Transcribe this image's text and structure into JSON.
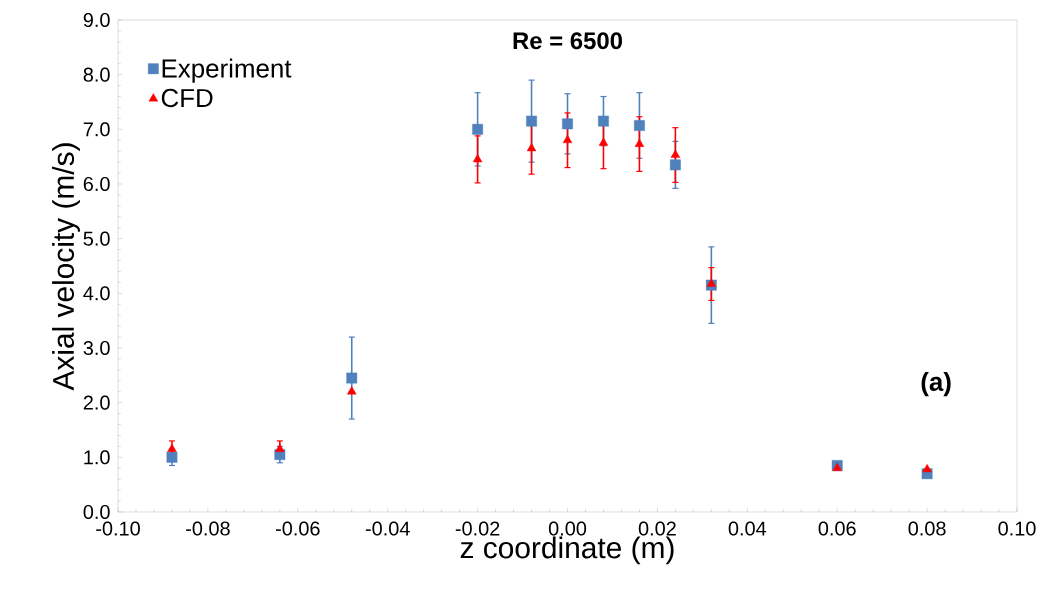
{
  "chart_data": {
    "type": "scatter",
    "title": "**Re = 6500**",
    "xlabel": "z coordinate (m)",
    "ylabel": "Axial velocity (m/s)",
    "annotations": [
      "**(a)**"
    ],
    "x": [
      -0.088,
      -0.064,
      -0.048,
      -0.02,
      -0.008,
      0.0,
      0.008,
      0.016,
      0.024,
      0.032,
      0.06,
      0.08
    ],
    "series": [
      {
        "name": "Experiment",
        "color": "#4f81bd",
        "marker": "square",
        "values": [
          1.0,
          1.05,
          2.45,
          7.0,
          7.15,
          7.1,
          7.15,
          7.07,
          6.35,
          4.15,
          0.85,
          0.7
        ],
        "errors": [
          0.15,
          0.15,
          0.75,
          0.67,
          0.75,
          0.55,
          0.45,
          0.6,
          0.43,
          0.7,
          null,
          null
        ]
      },
      {
        "name": "CFD",
        "color": "#ff0000",
        "marker": "triangle",
        "values": [
          1.15,
          1.15,
          2.2,
          6.45,
          6.65,
          6.8,
          6.75,
          6.73,
          6.53,
          4.17,
          0.8,
          0.78
        ],
        "errors": [
          0.15,
          0.15,
          null,
          0.43,
          0.47,
          0.5,
          0.47,
          0.5,
          0.5,
          0.3,
          null,
          null
        ]
      }
    ],
    "xlim": [
      -0.1,
      0.1
    ],
    "xticks": [
      {
        "value": -0.1,
        "label": "-0.10"
      },
      {
        "value": -0.08,
        "label": "-0.08"
      },
      {
        "value": -0.06,
        "label": "-0.06"
      },
      {
        "value": -0.04,
        "label": "-0.04"
      },
      {
        "value": -0.02,
        "label": "-0.02"
      },
      {
        "value": 0.0,
        "label": "0.00"
      },
      {
        "value": 0.02,
        "label": "0.02"
      },
      {
        "value": 0.04,
        "label": "0.04"
      },
      {
        "value": 0.06,
        "label": "0.06"
      },
      {
        "value": 0.08,
        "label": "0.08"
      },
      {
        "value": 0.1,
        "label": "0.10"
      }
    ],
    "ylim": [
      0,
      9
    ],
    "yticks": [
      {
        "value": 0,
        "label": "0.0"
      },
      {
        "value": 1,
        "label": "1.0"
      },
      {
        "value": 2,
        "label": "2.0"
      },
      {
        "value": 3,
        "label": "3.0"
      },
      {
        "value": 4,
        "label": "4.0"
      },
      {
        "value": 5,
        "label": "5.0"
      },
      {
        "value": 6,
        "label": "6.0"
      },
      {
        "value": 7,
        "label": "7.0"
      },
      {
        "value": 8,
        "label": "8.0"
      },
      {
        "value": 9,
        "label": "9.0"
      }
    ],
    "grid": false,
    "legend": "top left"
  }
}
